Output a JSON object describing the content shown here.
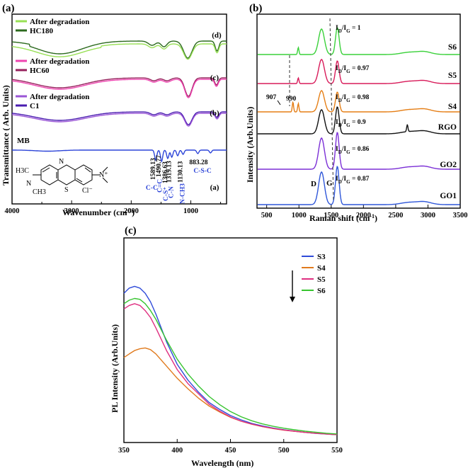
{
  "panels": {
    "a": {
      "letter": "(a)"
    },
    "b": {
      "letter": "(b)"
    },
    "c": {
      "letter": "(c)"
    }
  },
  "chart_data": [
    {
      "id": "a",
      "type": "line",
      "title": "",
      "xlabel": "Wavenumber (cm-1)",
      "ylabel": "Transmittance ( Arb. Units)",
      "xlim": [
        4000,
        400
      ],
      "xticks": [
        4000,
        3000,
        2000,
        1000
      ],
      "legend": [
        {
          "name": "After degradation",
          "color": "#98e055"
        },
        {
          "name": "HC180",
          "color": "#2c6a1e"
        },
        {
          "name": "After degradation",
          "color": "#ee44b0"
        },
        {
          "name": "HC60",
          "color": "#96205c"
        },
        {
          "name": "After degradation",
          "color": "#9a55d6"
        },
        {
          "name": "C1",
          "color": "#4a1cb0"
        }
      ],
      "trace_labels": [
        "(d)",
        "(c)",
        "(b)",
        "(a)"
      ],
      "mb_label": "MB",
      "molecule_labels": {
        "left": "H3C",
        "left2": "CH3",
        "n": "N",
        "s": "S",
        "cl": "Cl⁻",
        "nplus": "N⁺"
      },
      "annotations": [
        {
          "text": "1589.13",
          "x": 1589.13
        },
        {
          "text": "1490.77",
          "x": 1490.77
        },
        {
          "text": "1386.63",
          "x": 1386.63
        },
        {
          "text": "1319.13",
          "x": 1319.13
        },
        {
          "text": "1130.13",
          "x": 1130.13
        },
        {
          "text": "883.28",
          "x": 883.28
        }
      ],
      "bond_labels": [
        "C-C",
        "C=C",
        "C-S⁺",
        "C-N",
        "N-CH3",
        "C-S-C"
      ]
    },
    {
      "id": "b",
      "type": "line",
      "xlabel": "Raman shift  (cm-1)",
      "ylabel": "Intensity (Arb.Units)",
      "xlim": [
        350,
        3500
      ],
      "xticks": [
        500,
        1000,
        1500,
        2000,
        2500,
        3000,
        3500
      ],
      "series": [
        {
          "name": "S6",
          "color": "#3ad13a",
          "ratio": "ID/IG = 1",
          "label_color": "#000000"
        },
        {
          "name": "S5",
          "color": "#d81b5a",
          "ratio": "ID/IG = 0.97",
          "label_color": "#000000"
        },
        {
          "name": "S4",
          "color": "#e57e15",
          "ratio": "ID/IG = 0.98",
          "label_color": "#000000"
        },
        {
          "name": "RGO",
          "color": "#111111",
          "ratio": "ID/IG = 0.9",
          "label_color": "#000000"
        },
        {
          "name": "GO2",
          "color": "#7b2fd6",
          "ratio": "ID/IG = 0.86",
          "label_color": "#6a24c8"
        },
        {
          "name": "GO1",
          "color": "#2f57d9",
          "ratio": "ID/IG = 0.87",
          "label_color": "#2f57d9"
        }
      ],
      "band_labels": [
        "D",
        "G"
      ],
      "peak_annotations": [
        {
          "text": "907",
          "x": 907
        },
        {
          "text": "990",
          "x": 990
        }
      ]
    },
    {
      "id": "c",
      "type": "line",
      "xlabel": "Wavelength (nm)",
      "ylabel": "PL Intensity (Arb.Units)",
      "xlim": [
        350,
        550
      ],
      "ylim": [
        0,
        1
      ],
      "xticks": [
        350,
        400,
        450,
        500,
        550
      ],
      "x": [
        350,
        355,
        360,
        365,
        370,
        375,
        380,
        390,
        400,
        410,
        420,
        430,
        440,
        450,
        460,
        470,
        480,
        490,
        500,
        510,
        520,
        530,
        540,
        550
      ],
      "series": [
        {
          "name": "S3",
          "color": "#2f4bd9",
          "values": [
            0.84,
            0.87,
            0.88,
            0.87,
            0.84,
            0.79,
            0.72,
            0.56,
            0.43,
            0.34,
            0.27,
            0.21,
            0.17,
            0.135,
            0.11,
            0.09,
            0.075,
            0.063,
            0.053,
            0.045,
            0.038,
            0.032,
            0.028,
            0.024
          ]
        },
        {
          "name": "S4",
          "color": "#e07a1d",
          "values": [
            0.47,
            0.49,
            0.51,
            0.52,
            0.525,
            0.515,
            0.49,
            0.42,
            0.35,
            0.29,
            0.235,
            0.19,
            0.155,
            0.125,
            0.102,
            0.085,
            0.071,
            0.06,
            0.051,
            0.044,
            0.038,
            0.033,
            0.029,
            0.025
          ]
        },
        {
          "name": "S5",
          "color": "#df2f80",
          "values": [
            0.75,
            0.77,
            0.78,
            0.77,
            0.74,
            0.7,
            0.64,
            0.51,
            0.4,
            0.32,
            0.26,
            0.2,
            0.16,
            0.127,
            0.103,
            0.086,
            0.072,
            0.061,
            0.052,
            0.045,
            0.038,
            0.033,
            0.029,
            0.025
          ]
        },
        {
          "name": "S6",
          "color": "#37c42f",
          "values": [
            0.78,
            0.8,
            0.81,
            0.805,
            0.78,
            0.74,
            0.69,
            0.57,
            0.46,
            0.375,
            0.305,
            0.245,
            0.197,
            0.158,
            0.128,
            0.105,
            0.087,
            0.073,
            0.062,
            0.053,
            0.045,
            0.039,
            0.033,
            0.029
          ]
        }
      ]
    }
  ]
}
